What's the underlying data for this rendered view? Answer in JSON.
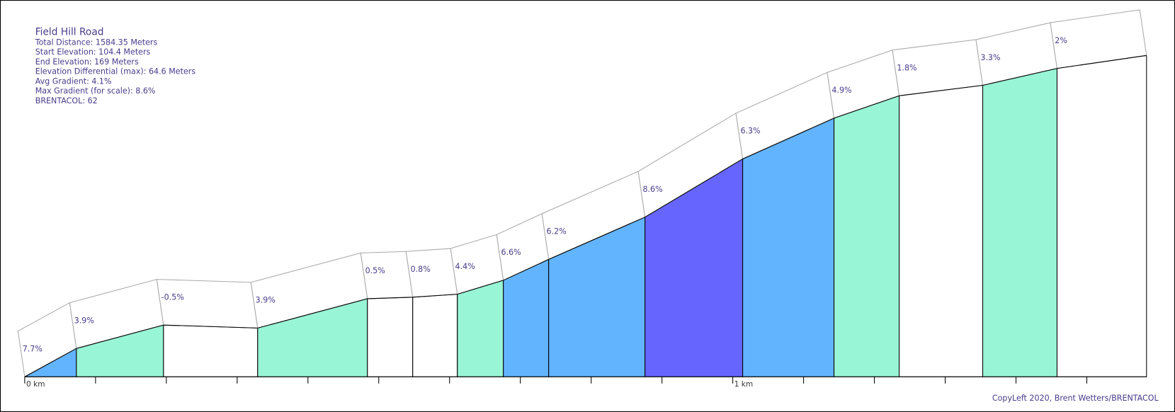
{
  "chart_data": {
    "type": "elevation-profile",
    "title": "Field Hill Road",
    "info": [
      "Total Distance: 1584.35 Meters",
      "Start Elevation: 104.4 Meters",
      "End Elevation: 169 Meters",
      "Elevation Differential (max): 64.6 Meters",
      "Avg Gradient: 4.1%",
      "Max Gradient (for scale): 8.6%",
      "BRENTACOL: 62"
    ],
    "credit": "CopyLeft 2020, Brent Wetters/BRENTACOL",
    "distances": [
      0,
      0.073,
      0.196,
      0.329,
      0.484,
      0.548,
      0.611,
      0.676,
      0.74,
      0.876,
      1.014,
      1.143,
      1.235,
      1.353,
      1.458,
      1.58435
    ],
    "elevations": [
      104.4,
      110.1,
      114.8,
      114.2,
      120.1,
      120.4,
      121.0,
      123.8,
      128.0,
      136.5,
      148.2,
      156.4,
      160.9,
      163.0,
      166.4,
      169.0
    ],
    "gradients": [
      7.7,
      3.9,
      -0.5,
      3.9,
      0.5,
      0.8,
      4.4,
      6.6,
      6.2,
      8.6,
      6.3,
      4.9,
      1.8,
      3.3,
      2
    ],
    "value_labels": [
      "7.7%",
      "3.9%",
      "-0.5%",
      "3.9%",
      "0.5%",
      "0.8%",
      "4.4%",
      "6.6%",
      "6.2%",
      "8.6%",
      "6.3%",
      "4.9%",
      "1.8%",
      "3.3%",
      "2%"
    ],
    "colors": [
      "#62b4ff",
      "#98f5d6",
      "#ffffff",
      "#98f5d6",
      "#ffffff",
      "#ffffff",
      "#98f5d6",
      "#62b4ff",
      "#62b4ff",
      "#6666ff",
      "#62b4ff",
      "#98f5d6",
      "#ffffff",
      "#98f5d6",
      "#ffffff"
    ],
    "xlim": [
      0,
      1.58435
    ],
    "ylim": [
      104.4,
      169
    ],
    "xticks": [
      {
        "value": 0,
        "label": "0 km"
      },
      {
        "value": 0.1,
        "label": null
      },
      {
        "value": 0.2,
        "label": null
      },
      {
        "value": 0.3,
        "label": null
      },
      {
        "value": 0.4,
        "label": null
      },
      {
        "value": 0.5,
        "label": null
      },
      {
        "value": 0.6,
        "label": null
      },
      {
        "value": 0.7,
        "label": null
      },
      {
        "value": 0.8,
        "label": null
      },
      {
        "value": 0.9,
        "label": null
      },
      {
        "value": 1,
        "label": "1 km"
      },
      {
        "value": 1.1,
        "label": null
      },
      {
        "value": 1.2,
        "label": null
      },
      {
        "value": 1.3,
        "label": null
      },
      {
        "value": 1.4,
        "label": null
      },
      {
        "value": 1.5,
        "label": null
      }
    ]
  }
}
